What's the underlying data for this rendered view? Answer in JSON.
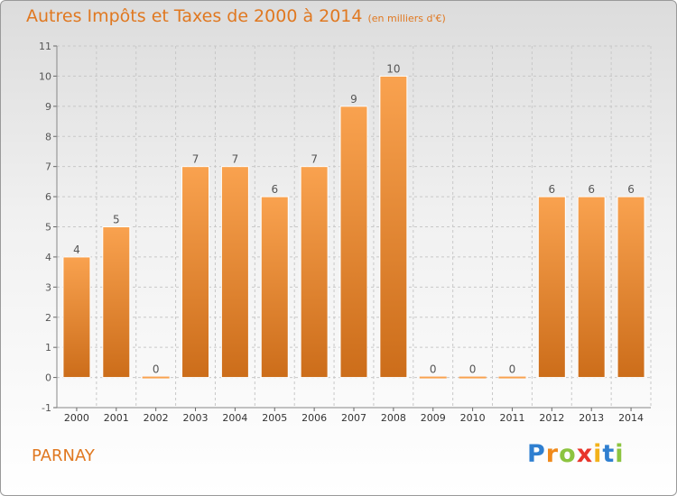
{
  "header": {
    "title": "Autres Impôts et Taxes de 2000 à 2014",
    "unit": "(en milliers d'€)"
  },
  "footer": {
    "place": "PARNAY",
    "logo_letters": [
      {
        "ch": "P",
        "color": "#2f7fd0"
      },
      {
        "ch": "r",
        "color": "#f08a1c"
      },
      {
        "ch": "o",
        "color": "#8cc43f"
      },
      {
        "ch": "x",
        "color": "#e8352b"
      },
      {
        "ch": "i",
        "color": "#f3b21a"
      },
      {
        "ch": "t",
        "color": "#2f7fd0"
      },
      {
        "ch": "i",
        "color": "#8cc43f"
      }
    ]
  },
  "chart_data": {
    "type": "bar",
    "categories": [
      "2000",
      "2001",
      "2002",
      "2003",
      "2004",
      "2005",
      "2006",
      "2007",
      "2008",
      "2009",
      "2010",
      "2011",
      "2012",
      "2013",
      "2014"
    ],
    "values": [
      4,
      5,
      0,
      7,
      7,
      6,
      7,
      9,
      10,
      0,
      0,
      0,
      6,
      6,
      6
    ],
    "data_labels": [
      "4",
      "5",
      "0",
      "7",
      "7",
      "6",
      "7",
      "9",
      "10",
      "0",
      "0",
      "0",
      "6",
      "6",
      "6"
    ],
    "ylim": [
      -1,
      11
    ],
    "yticks": [
      -1,
      0,
      1,
      2,
      3,
      4,
      5,
      6,
      7,
      8,
      9,
      10,
      11
    ],
    "ytick_labels": [
      "-1",
      "0",
      "1",
      "2",
      "3",
      "4",
      "5",
      "6",
      "7",
      "8",
      "9",
      "10",
      "11"
    ],
    "grid": "horizontal and vertical dashed",
    "colors": {
      "bar_top": "#f9a24f",
      "bar_bottom": "#cc6d1a",
      "text": "#555555",
      "grid": "#c8c8c8",
      "accent": "#e07820"
    }
  }
}
